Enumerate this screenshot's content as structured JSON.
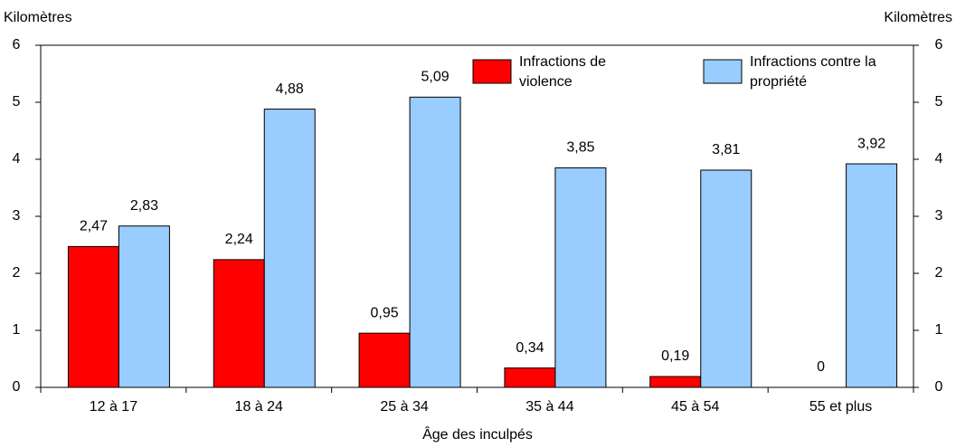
{
  "chart_data": {
    "type": "bar",
    "y_label": "Kilomètres",
    "y2_label": "Kilomètres",
    "x_label": "Âge des inculpés",
    "categories": [
      "12 à 17",
      "18 à 24",
      "25 à 34",
      "35 à 44",
      "45 à 54",
      "55 et plus"
    ],
    "series": [
      {
        "name": "Infractions de violence",
        "color": "#ff0000",
        "values": [
          2.47,
          2.24,
          0.95,
          0.34,
          0.19,
          0
        ],
        "value_labels": [
          "2,47",
          "2,24",
          "0,95",
          "0,34",
          "0,19",
          "0"
        ]
      },
      {
        "name": "Infractions contre la propriété",
        "color": "#99ccff",
        "values": [
          2.83,
          4.88,
          5.09,
          3.85,
          3.81,
          3.92
        ],
        "value_labels": [
          "2,83",
          "4,88",
          "5,09",
          "3,85",
          "3,81",
          "3,92"
        ]
      }
    ],
    "ylim": [
      0,
      6
    ],
    "yticks": [
      0,
      1,
      2,
      3,
      4,
      5,
      6
    ],
    "y2lim": [
      0,
      6
    ],
    "y2ticks": [
      0,
      1,
      2,
      3,
      4,
      5,
      6
    ],
    "grid": false
  }
}
